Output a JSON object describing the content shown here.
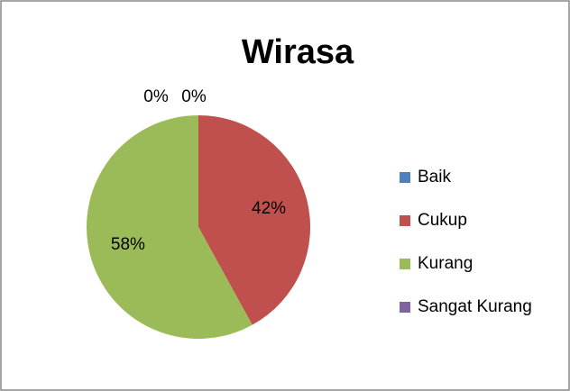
{
  "chart_data": {
    "type": "pie",
    "title": "Wirasa",
    "categories": [
      "Baik",
      "Cukup",
      "Kurang",
      "Sangat Kurang"
    ],
    "values": [
      0,
      42,
      58,
      0
    ],
    "value_labels": [
      "0%",
      "42%",
      "58%",
      "0%"
    ],
    "colors": [
      "#4f81bd",
      "#c0504d",
      "#9bbb59",
      "#8064a2"
    ],
    "legend": "right"
  }
}
